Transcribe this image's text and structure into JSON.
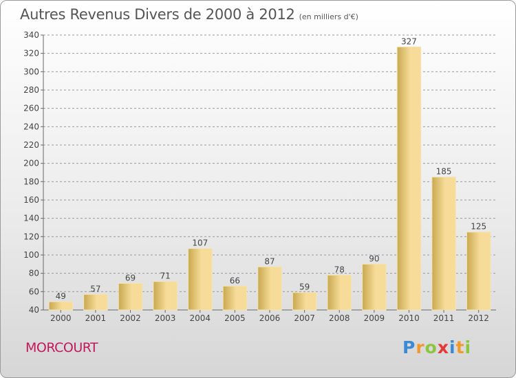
{
  "header": {
    "title": "Autres Revenus Divers de 2000 à 2012",
    "subtitle": "(en milliers d'€)"
  },
  "footer": {
    "place": "MORCOURT",
    "brand_letters": [
      "P",
      "r",
      "o",
      "x",
      "i",
      "t",
      "i"
    ]
  },
  "colors": {
    "bar_light": "#f6dc98",
    "bar_dark": "#c9a850",
    "grid": "#999999",
    "place": "#c2185b"
  },
  "chart_data": {
    "type": "bar",
    "title": "Autres Revenus Divers de 2000 à 2012",
    "subtitle": "(en milliers d'€)",
    "xlabel": "",
    "ylabel": "",
    "categories": [
      "2000",
      "2001",
      "2002",
      "2003",
      "2004",
      "2005",
      "2006",
      "2007",
      "2008",
      "2009",
      "2010",
      "2011",
      "2012"
    ],
    "values": [
      49,
      57,
      69,
      71,
      107,
      66,
      87,
      59,
      78,
      90,
      327,
      185,
      125
    ],
    "ylim": [
      40,
      340
    ],
    "yticks": [
      40,
      60,
      80,
      100,
      120,
      140,
      160,
      180,
      200,
      220,
      240,
      260,
      280,
      300,
      320,
      340
    ],
    "grid": "horizontal dashed",
    "legend": "none"
  }
}
